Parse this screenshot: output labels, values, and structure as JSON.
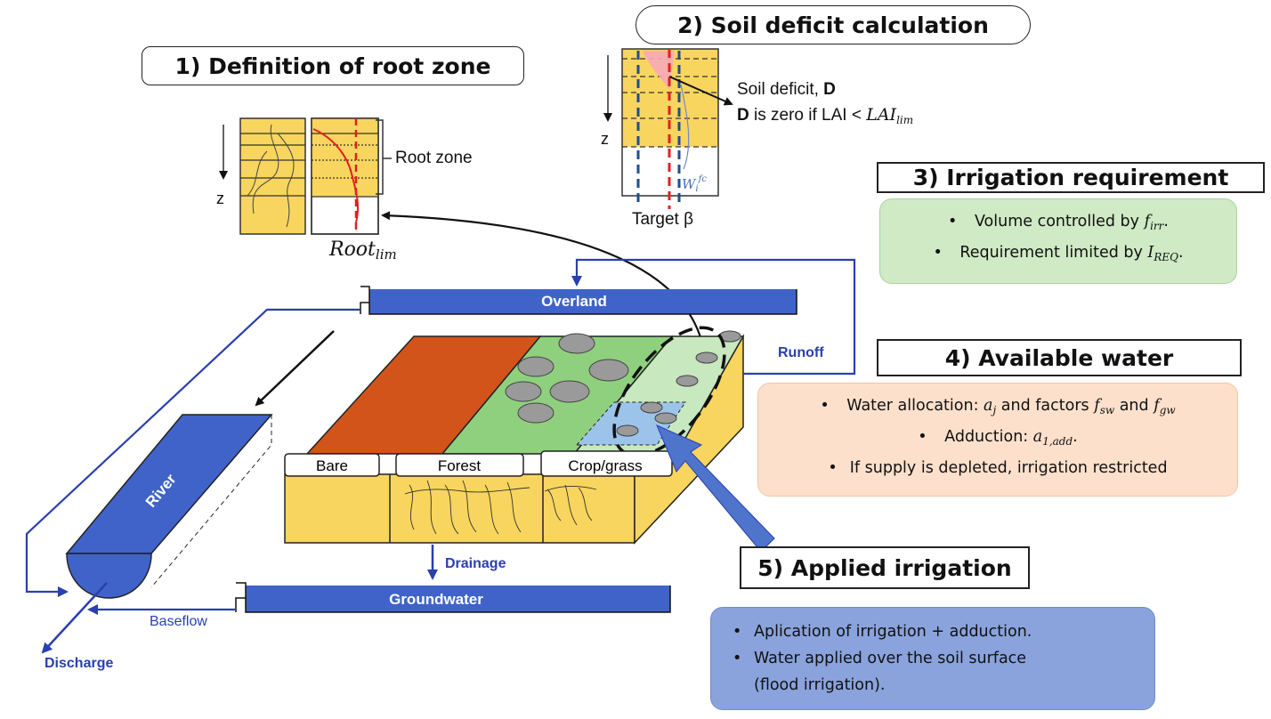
{
  "titles": {
    "root_zone": "1) Definition of root zone",
    "soil_deficit": "2) Soil deficit calculation",
    "irrigation_requirement": "3) Irrigation requirement",
    "available_water": "4) Available water",
    "applied_irrigation": "5) Applied irrigation"
  },
  "panel1": {
    "root_zone_label": "Root zone",
    "z_label": "z",
    "root_lim_main": "Root",
    "root_lim_sub": "lim"
  },
  "panel2": {
    "deficit_label_prefix": "Soil deficit, ",
    "deficit_symbol": "D",
    "zero_line_symbol": "D",
    "zero_line_text": " is zero if LAI < ",
    "lai_lim_main": "LAI",
    "lai_lim_sub": "lim",
    "z_label": "z",
    "wfc_main": "W",
    "wfc_sub": "i",
    "wfc_sup": "fc",
    "target_label": "Target β"
  },
  "panel3": {
    "item1_text": "Volume controlled by ",
    "item1_var": "f",
    "item1_sub": "irr",
    "item1_end": ".",
    "item2_text": "Requirement limited by ",
    "item2_var": "I",
    "item2_sub": "REQ",
    "item2_end": "."
  },
  "panel4": {
    "item1_text": "Water allocation: ",
    "item1_a": "a",
    "item1_a_sub": "j",
    "item1_mid": " and factors ",
    "item1_f1": "f",
    "item1_f1_sub": "sw",
    "item1_and": " and ",
    "item1_f2": "f",
    "item1_f2_sub": "gw",
    "item2_text": "Adduction: ",
    "item2_a": "a",
    "item2_a_sub": "1,add",
    "item2_end": ".",
    "item3_text": "If supply is depleted, irrigation restricted"
  },
  "panel5": {
    "item1": "Aplication of irrigation + adduction.",
    "item2_line1": "Water applied over the soil surface",
    "item2_line2": "(flood irrigation)."
  },
  "landscape": {
    "overland": "Overland",
    "runoff": "Runoff",
    "river": "River",
    "drainage": "Drainage",
    "groundwater": "Groundwater",
    "baseflow": "Baseflow",
    "discharge": "Discharge",
    "bare": "Bare",
    "forest": "Forest",
    "crop_grass": "Crop/grass"
  },
  "colors": {
    "soil_yellow": "#f8d55e",
    "bare_orange": "#d2541b",
    "forest_green": "#8fd07e",
    "crop_green": "#c8e8bf",
    "water_blue": "#3f63c8",
    "flow_blue": "#2a3fb0",
    "box3_green": "#cfeac4",
    "box4_peach": "#fde0cc",
    "box5_blue": "#8aa3dc",
    "red_line": "#e02020"
  }
}
